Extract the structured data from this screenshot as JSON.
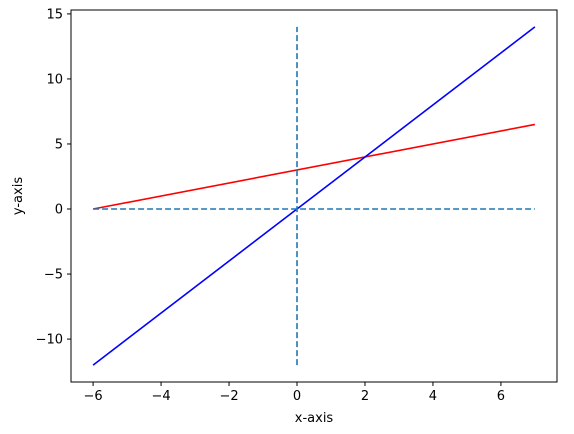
{
  "chart_data": {
    "type": "line",
    "xlabel": "x-axis",
    "ylabel": "y-axis",
    "xlim": [
      -6.65,
      7.65
    ],
    "ylim": [
      -13.3,
      15.3
    ],
    "x_ticks": [
      -6,
      -4,
      -2,
      0,
      2,
      4,
      6
    ],
    "y_ticks": [
      -10,
      -5,
      0,
      5,
      10,
      15
    ],
    "x_tick_labels": [
      "−6",
      "−4",
      "−2",
      "0",
      "2",
      "4",
      "6"
    ],
    "y_tick_labels": [
      "−10",
      "−5",
      "0",
      "5",
      "10",
      "15"
    ],
    "grid": false,
    "series": [
      {
        "color": "#ff0000",
        "style": "solid",
        "x": [
          -6,
          7
        ],
        "y": [
          0,
          6.5
        ]
      },
      {
        "color": "#0000ff",
        "style": "solid",
        "x": [
          -6,
          7
        ],
        "y": [
          -12,
          14
        ]
      },
      {
        "color": "#1f77b4",
        "style": "dashed",
        "x": [
          -6,
          7
        ],
        "y": [
          0,
          0
        ]
      },
      {
        "color": "#1f77b4",
        "style": "dashed",
        "x": [
          0,
          0
        ],
        "y": [
          -12,
          14
        ]
      }
    ]
  }
}
